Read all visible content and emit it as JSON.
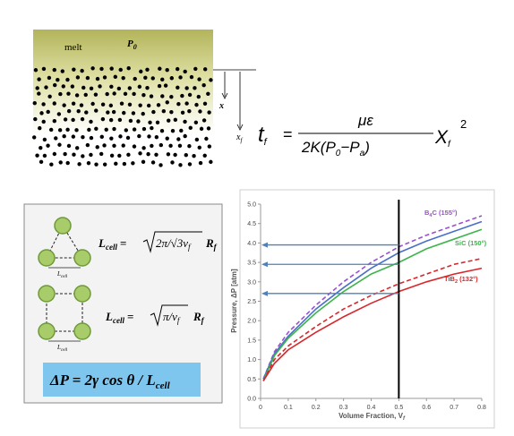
{
  "diagram": {
    "melt": "melt",
    "p": "P",
    "p_sub": "0",
    "x": "x",
    "xf": "x",
    "xf_sub": "f"
  },
  "equation": {
    "t": "t",
    "t_sub": "f",
    "eq": "=",
    "numerator": "με",
    "den_a": "2K(P",
    "den_sub1": "0",
    "den_b": "−P",
    "den_sub2": "a",
    "den_c": ")",
    "x": "X",
    "x_sub": "f",
    "power": "2"
  },
  "cell_model": {
    "spacing_label": [
      {
        "l": "L",
        "sub": "cell"
      },
      {
        "l": "L",
        "sub": "cell"
      }
    ],
    "formula1": {
      "l": "L",
      "l_sub": "cell",
      "eq": "=",
      "inner": "2π/√3v",
      "inner_sub": "f",
      "r": "R",
      "r_sub": "f"
    },
    "formula2": {
      "l": "L",
      "l_sub": "cell",
      "eq": "=",
      "inner": "π/v",
      "inner_sub": "f",
      "r": "R",
      "r_sub": "f"
    },
    "pressure": {
      "main": "ΔP = 2γ cos θ / L",
      "sub": "cell"
    }
  },
  "chart_data": {
    "type": "line",
    "x_label": "Volume Fraction, V",
    "x_label_sub": "f",
    "y_label": "Pressure, ΔP [atm]",
    "x": [
      0.01,
      0.05,
      0.1,
      0.2,
      0.3,
      0.4,
      0.5,
      0.6,
      0.7,
      0.8
    ],
    "series": [
      {
        "color": "#9b4fd0",
        "dash": true,
        "values": [
          0.5,
          1.2,
          1.7,
          2.4,
          3.0,
          3.5,
          3.9,
          4.2,
          4.45,
          4.7
        ]
      },
      {
        "color": "#4a6fc8",
        "dash": false,
        "values": [
          0.5,
          1.15,
          1.6,
          2.3,
          2.85,
          3.35,
          3.75,
          4.05,
          4.3,
          4.55
        ]
      },
      {
        "color": "#3cb54a",
        "dash": false,
        "values": [
          0.45,
          1.1,
          1.55,
          2.2,
          2.75,
          3.2,
          3.5,
          3.85,
          4.1,
          4.35
        ]
      },
      {
        "color": "#d9262b",
        "dash": true,
        "values": [
          0.45,
          1.0,
          1.35,
          1.85,
          2.3,
          2.65,
          2.95,
          3.2,
          3.45,
          3.6
        ]
      },
      {
        "color": "#d9262b",
        "dash": false,
        "values": [
          0.45,
          0.9,
          1.25,
          1.7,
          2.1,
          2.45,
          2.75,
          3.0,
          3.2,
          3.35
        ]
      }
    ],
    "annotations": [
      {
        "label": "B",
        "sub": "4",
        "rest": "C (155°)",
        "color": "#9b4fd0"
      },
      {
        "label": "SiC (150°)",
        "color": "#3cb54a"
      },
      {
        "label": "TiB",
        "sub": "2",
        "rest": " (132°)",
        "color": "#d9262b"
      }
    ],
    "marker_x": 0.5,
    "arrow_y": [
      3.95,
      3.45,
      2.7
    ],
    "arrow_color": "#4f81bd",
    "xlim": [
      0,
      0.8
    ],
    "xticks": [
      0,
      0.1,
      0.2,
      0.3,
      0.4,
      0.5,
      0.6,
      0.7,
      0.8
    ],
    "ylim": [
      0,
      5
    ],
    "yticks": [
      {
        "value": 0,
        "label": "0.0"
      },
      {
        "value": 0.5,
        "label": "0.5"
      },
      {
        "value": 1,
        "label": "1.0"
      },
      {
        "value": 1.5,
        "label": "1.5"
      },
      {
        "value": 2,
        "label": "2.0"
      },
      {
        "value": 2.5,
        "label": "2.5"
      },
      {
        "value": 3,
        "label": "3.0"
      },
      {
        "value": 3.5,
        "label": "3.5"
      },
      {
        "value": 4,
        "label": "4.0"
      },
      {
        "value": 4.5,
        "label": "4.5"
      },
      {
        "value": 5,
        "label": "5.0"
      }
    ]
  }
}
